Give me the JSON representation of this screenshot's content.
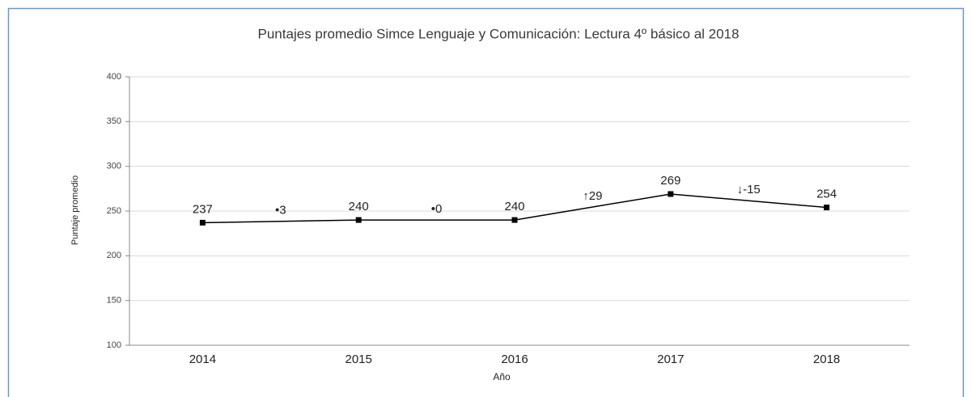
{
  "chart_data": {
    "type": "line",
    "title": "Puntajes promedio Simce Lenguaje y Comunicación: Lectura 4º básico al 2018",
    "x_label": "Año",
    "y_label": "Puntaje promedio",
    "categories": [
      "2014",
      "2015",
      "2016",
      "2017",
      "2018"
    ],
    "series": [
      {
        "name": "Puntaje promedio",
        "color": "#000000",
        "values": [
          237,
          240,
          240,
          269,
          254
        ]
      }
    ],
    "annotations": [
      "•3",
      "•0",
      "↑29",
      "↓-15"
    ],
    "ylim": [
      100,
      400
    ],
    "yticks": [
      100,
      150,
      200,
      250,
      300,
      350,
      400
    ],
    "grid": true
  }
}
